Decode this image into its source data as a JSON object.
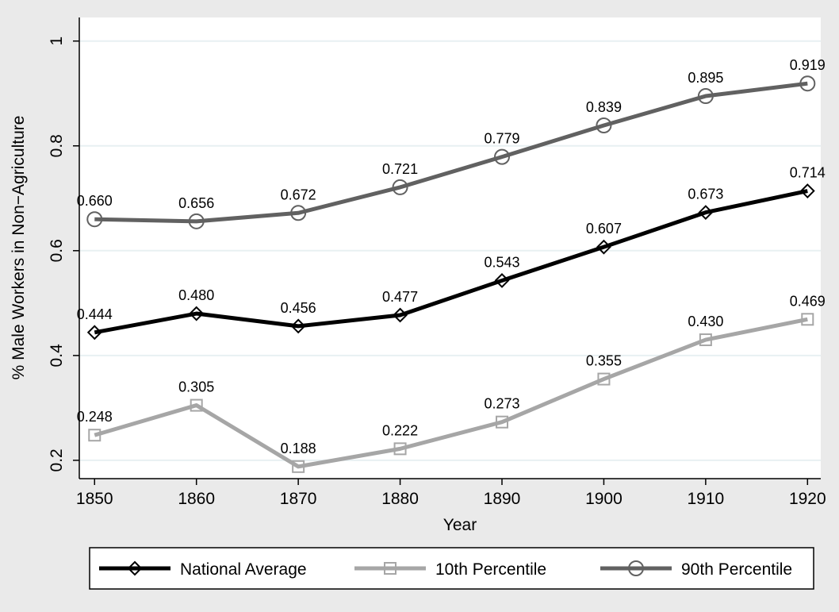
{
  "chart_data": {
    "type": "line",
    "x_label": "Year",
    "y_label": "% Male Workers in Non−Agriculture",
    "x": [
      1850,
      1860,
      1870,
      1880,
      1890,
      1900,
      1910,
      1920
    ],
    "series": [
      {
        "name": "National Average",
        "color": "#000000",
        "marker": "diamond",
        "values": [
          0.444,
          0.48,
          0.456,
          0.477,
          0.543,
          0.607,
          0.673,
          0.714
        ],
        "value_labels": [
          "0.444",
          "0.480",
          "0.456",
          "0.477",
          "0.543",
          "0.607",
          "0.673",
          "0.714"
        ]
      },
      {
        "name": "10th Percentile",
        "color": "#a6a6a6",
        "marker": "square",
        "values": [
          0.248,
          0.305,
          0.188,
          0.222,
          0.273,
          0.355,
          0.43,
          0.469
        ],
        "value_labels": [
          "0.248",
          "0.305",
          "0.188",
          "0.222",
          "0.273",
          "0.355",
          "0.430",
          "0.469"
        ]
      },
      {
        "name": "90th Percentile",
        "color": "#616161",
        "marker": "circle",
        "values": [
          0.66,
          0.656,
          0.672,
          0.721,
          0.779,
          0.839,
          0.895,
          0.919
        ],
        "value_labels": [
          "0.660",
          "0.656",
          "0.672",
          "0.721",
          "0.779",
          "0.839",
          "0.895",
          "0.919"
        ]
      }
    ],
    "xlim": [
      1848.5,
      1921.3
    ],
    "xticks": [
      1850,
      1860,
      1870,
      1880,
      1890,
      1900,
      1910,
      1920
    ],
    "ylim": [
      0.165,
      1.045
    ],
    "yticks": [
      0.2,
      0.4,
      0.6,
      0.8,
      1
    ],
    "grid": true,
    "legend": "bottom"
  }
}
